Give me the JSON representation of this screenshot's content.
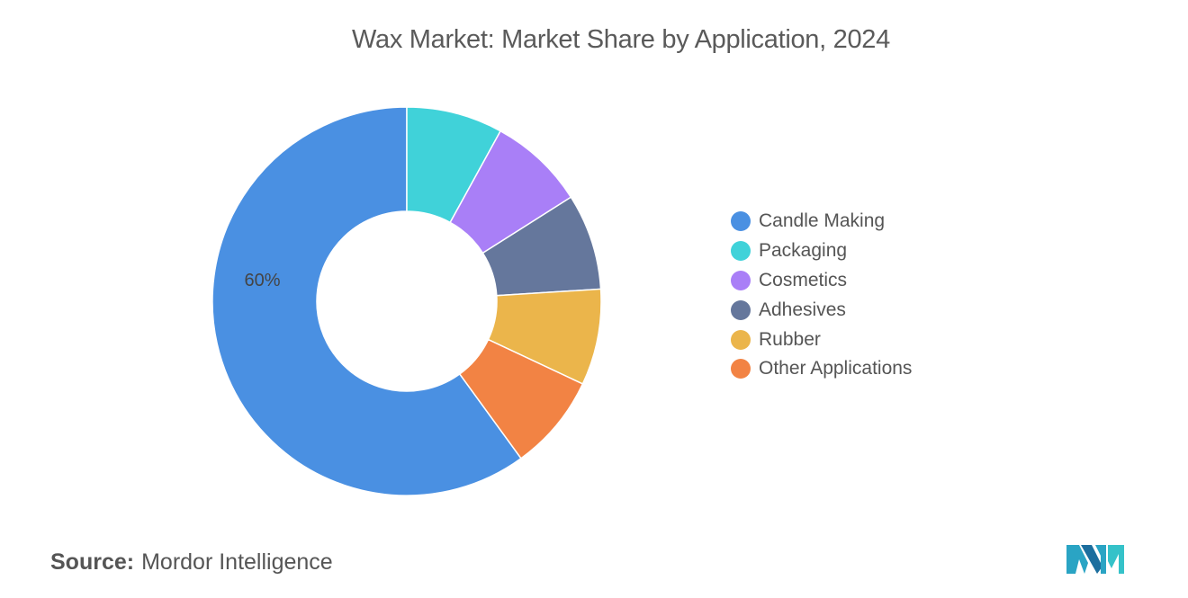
{
  "chart_data": {
    "type": "donut",
    "title": "Wax Market: Market Share by Application, 2024",
    "categories": [
      "Candle Making",
      "Packaging",
      "Cosmetics",
      "Adhesives",
      "Rubber",
      "Other Applications"
    ],
    "values": [
      60,
      8,
      8,
      8,
      8,
      8
    ],
    "data_labels": [
      "60%",
      "",
      "",
      "",
      "",
      ""
    ],
    "colors": [
      "#4a90e2",
      "#40d2d9",
      "#a97ff7",
      "#65779c",
      "#ebb54b",
      "#f28344"
    ],
    "legend_position": "right"
  },
  "legend": {
    "items": [
      {
        "label": "Candle Making",
        "color": "#4a90e2"
      },
      {
        "label": "Packaging",
        "color": "#40d2d9"
      },
      {
        "label": "Cosmetics",
        "color": "#a97ff7"
      },
      {
        "label": "Adhesives",
        "color": "#65779c"
      },
      {
        "label": "Rubber",
        "color": "#ebb54b"
      },
      {
        "label": "Other Applications",
        "color": "#f28344"
      }
    ]
  },
  "source": {
    "key": "Source:",
    "value": "Mordor Intelligence"
  },
  "logo": {
    "icon": "mordor-intelligence-logo-icon"
  }
}
